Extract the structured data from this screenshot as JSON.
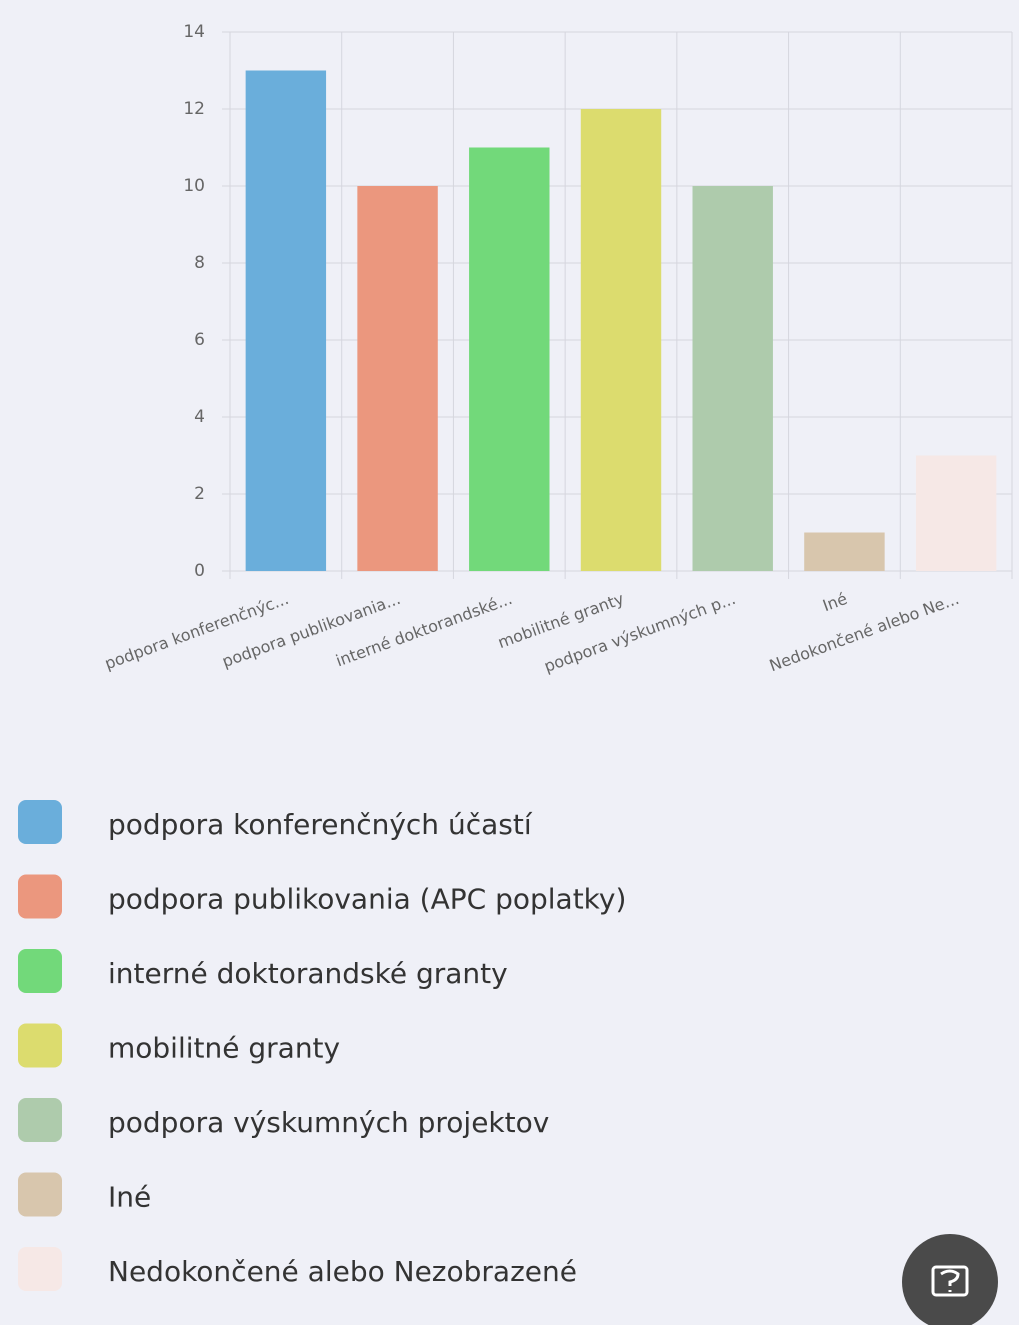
{
  "chart_data": {
    "type": "bar",
    "categories": [
      "podpora konferenčnýc...",
      "podpora publikovania...",
      "interné doktorandské...",
      "mobilitné granty",
      "podpora výskumných p...",
      "Iné",
      "Nedokončené alebo Ne..."
    ],
    "values": [
      13,
      10,
      11,
      12,
      10,
      1,
      3
    ],
    "colors": [
      "#6aaedb",
      "#eb977e",
      "#72d97a",
      "#dcdc6e",
      "#aecbac",
      "#d8c6ad",
      "#f6e8e6"
    ],
    "legend": [
      "podpora konferenčných účastí",
      "podpora publikovania (APC poplatky)",
      "interné doktorandské granty",
      "mobilitné granty",
      "podpora výskumných projektov",
      "Iné",
      "Nedokončené alebo Nezobrazené"
    ],
    "ylim": [
      0,
      14
    ],
    "yticks": [
      0,
      2,
      4,
      6,
      8,
      10,
      12,
      14
    ],
    "grid": true
  }
}
